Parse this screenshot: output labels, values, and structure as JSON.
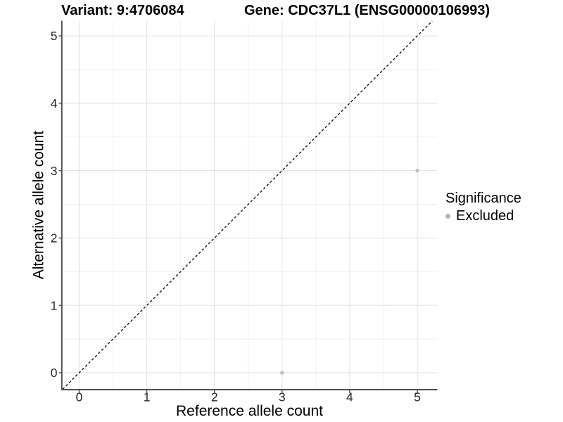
{
  "titles": {
    "variant": "Variant: 9:4706084",
    "gene": "Gene: CDC37L1 (ENSG00000106993)"
  },
  "chart_data": {
    "type": "scatter",
    "xlabel": "Reference allele count",
    "ylabel": "Alternative allele count",
    "xlim": [
      -0.25,
      5.3
    ],
    "ylim": [
      -0.25,
      5.22
    ],
    "xticks": [
      0,
      1,
      2,
      3,
      4,
      5
    ],
    "yticks": [
      0,
      1,
      2,
      3,
      4,
      5
    ],
    "minor_xticks": [
      0.5,
      1.5,
      2.5,
      3.5,
      4.5
    ],
    "minor_yticks": [
      0.5,
      1.5,
      2.5,
      3.5,
      4.5
    ],
    "grid": true,
    "series": [
      {
        "name": "Excluded",
        "color": "#bfbfbf",
        "points": [
          {
            "x": 3,
            "y": 0
          },
          {
            "x": 5,
            "y": 3
          }
        ]
      }
    ],
    "identity_line": {
      "slope": 1,
      "intercept": 0,
      "style": "dashed",
      "color": "#111111"
    },
    "legend": {
      "position": "right",
      "title": "Significance",
      "items": [
        {
          "label": "Excluded",
          "color": "#b3b3b3"
        }
      ]
    }
  },
  "colors": {
    "background": "#ffffff",
    "grid_major": "#e3e3e3",
    "grid_minor": "#f1f1f1",
    "axis_line": "#4d4d4d",
    "tick_mark": "#4d4d4d",
    "tick_text": "#262626"
  }
}
